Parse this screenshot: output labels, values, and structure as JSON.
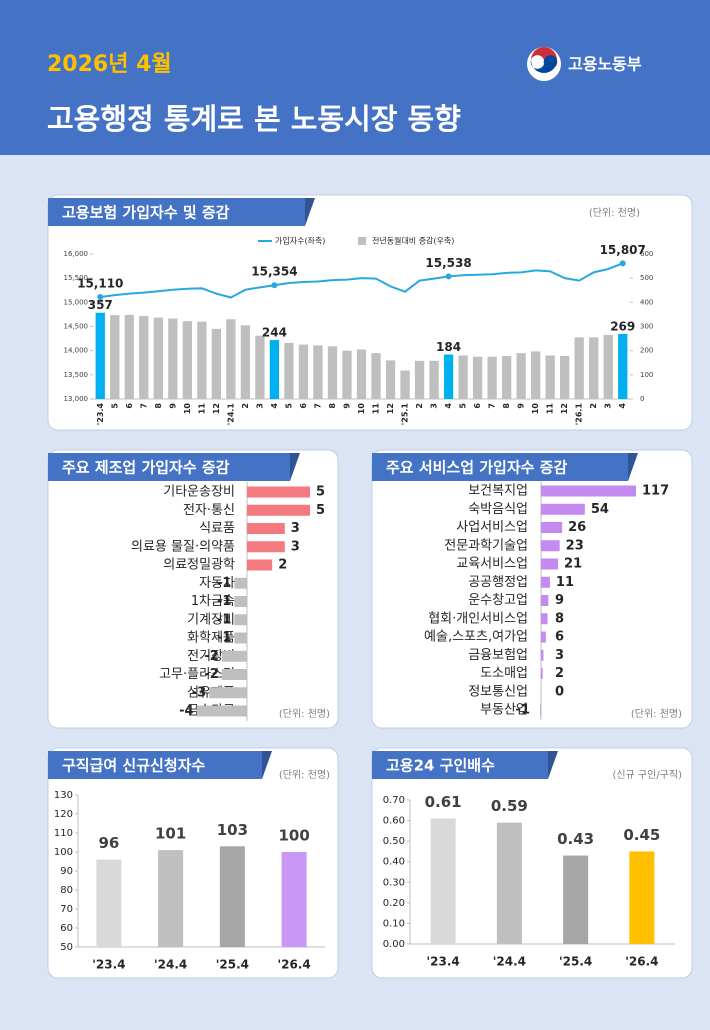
{
  "header": {
    "date": "2026년 4월",
    "title": "고용행정 통계로 본 노동시장 동향",
    "org": "고용노동부"
  },
  "chart_data": [
    {
      "type": "combo",
      "title": "고용보험 가입자수 및 증감",
      "note": "(단위: 천명)",
      "categories": [
        "'23.4",
        "5",
        "6",
        "7",
        "8",
        "9",
        "10",
        "11",
        "12",
        "'24.1",
        "2",
        "3",
        "4",
        "5",
        "6",
        "7",
        "8",
        "9",
        "10",
        "11",
        "12",
        "'25.1",
        "2",
        "3",
        "4",
        "5",
        "6",
        "7",
        "8",
        "9",
        "10",
        "11",
        "12",
        "'26.1",
        "2",
        "3",
        "4"
      ],
      "series": [
        {
          "name": "가입자수(좌축)",
          "type": "line",
          "color": "#29a8e0",
          "values": [
            15110,
            15150,
            15180,
            15200,
            15230,
            15260,
            15280,
            15290,
            15180,
            15100,
            15260,
            15310,
            15354,
            15400,
            15420,
            15430,
            15460,
            15470,
            15500,
            15490,
            15330,
            15220,
            15450,
            15490,
            15538,
            15560,
            15570,
            15580,
            15610,
            15620,
            15660,
            15640,
            15500,
            15450,
            15620,
            15690,
            15807
          ],
          "value_labels": [
            "15,110",
            null,
            null,
            null,
            null,
            null,
            null,
            null,
            null,
            null,
            null,
            null,
            "15,354",
            null,
            null,
            null,
            null,
            null,
            null,
            null,
            null,
            null,
            null,
            null,
            "15,538",
            null,
            null,
            null,
            null,
            null,
            null,
            null,
            null,
            null,
            null,
            null,
            "15,807"
          ]
        },
        {
          "name": "전년동월대비 증감(우축)",
          "type": "bar",
          "axis": "y2",
          "color": "#bfbfbf",
          "highlight_color": "#00b0f0",
          "values": [
            357,
            347,
            348,
            343,
            337,
            333,
            322,
            320,
            290,
            330,
            305,
            262,
            244,
            232,
            225,
            222,
            218,
            200,
            205,
            190,
            160,
            118,
            158,
            158,
            184,
            180,
            175,
            175,
            178,
            190,
            197,
            180,
            178,
            255,
            255,
            265,
            269
          ],
          "value_labels": [
            "357",
            null,
            null,
            null,
            null,
            null,
            null,
            null,
            null,
            null,
            null,
            null,
            "244",
            null,
            null,
            null,
            null,
            null,
            null,
            null,
            null,
            null,
            null,
            null,
            "184",
            null,
            null,
            null,
            null,
            null,
            null,
            null,
            null,
            null,
            null,
            null,
            "269"
          ]
        }
      ],
      "ylim": [
        13000,
        16000
      ],
      "yticks": [
        {
          "value": 13000,
          "label": "13,000"
        },
        {
          "value": 13500,
          "label": "13,500"
        },
        {
          "value": 14000,
          "label": "14,000"
        },
        {
          "value": 14500,
          "label": "14,500"
        },
        {
          "value": 15000,
          "label": "15,000"
        },
        {
          "value": 15500,
          "label": "15,500"
        },
        {
          "value": 16000,
          "label": "16,000"
        }
      ],
      "y2lim": [
        0,
        600
      ],
      "y2ticks": [
        0,
        100,
        200,
        300,
        400,
        500,
        600
      ]
    },
    {
      "type": "hbar",
      "title": "주요 제조업 가입자수 증감",
      "note": "(단위: 천명)",
      "color": "#f47a7f",
      "negative_color": "#bfbfbf",
      "categories": [
        "기타운송장비",
        "전자·통신",
        "식료품",
        "의료용 물질·의약품",
        "의료정밀광학",
        "자동차",
        "1차금속",
        "기계장비",
        "화학제품",
        "전기장비",
        "고무·플라스틱",
        "섬유제품",
        "금속가공"
      ],
      "values": [
        5,
        5,
        3,
        3,
        2,
        -1,
        -1,
        -1,
        -1,
        -2,
        -2,
        -3,
        -4
      ]
    },
    {
      "type": "hbar",
      "title": "주요 서비스업 가입자수 증감",
      "note": "(단위: 천명)",
      "color": "#c58af0",
      "categories": [
        "보건복지업",
        "숙박음식업",
        "사업서비스업",
        "전문과학기술업",
        "교육서비스업",
        "공공행정업",
        "운수창고업",
        "협회·개인서비스업",
        "예술,스포츠,여가업",
        "금융보험업",
        "도소매업",
        "정보통신업",
        "부동산업"
      ],
      "values": [
        117,
        54,
        26,
        23,
        21,
        11,
        9,
        8,
        6,
        3,
        2,
        0,
        -1
      ]
    },
    {
      "type": "bar",
      "title": "구직급여 신규신청자수",
      "note": "(단위: 천명)",
      "categories": [
        "'23.4",
        "'24.4",
        "'25.4",
        "'26.4"
      ],
      "values": [
        96,
        101,
        103,
        100
      ],
      "colors": [
        "#d9d9d9",
        "#bfbfbf",
        "#a6a6a6",
        "#c997f5"
      ],
      "ylim": [
        50,
        130
      ],
      "yticks": [
        50,
        60,
        70,
        80,
        90,
        100,
        110,
        120,
        130
      ]
    },
    {
      "type": "bar",
      "title": "고용24 구인배수",
      "note": "(신규 구인/구직)",
      "categories": [
        "'23.4",
        "'24.4",
        "'25.4",
        "'26.4"
      ],
      "values": [
        0.61,
        0.59,
        0.43,
        0.45
      ],
      "colors": [
        "#d9d9d9",
        "#bfbfbf",
        "#a6a6a6",
        "#ffc000"
      ],
      "ylim": [
        0,
        0.7
      ],
      "yticks": [
        {
          "value": 0,
          "label": "0.00"
        },
        {
          "value": 0.1,
          "label": "0.10"
        },
        {
          "value": 0.2,
          "label": "0.20"
        },
        {
          "value": 0.3,
          "label": "0.30"
        },
        {
          "value": 0.4,
          "label": "0.40"
        },
        {
          "value": 0.5,
          "label": "0.50"
        },
        {
          "value": 0.6,
          "label": "0.60"
        },
        {
          "value": 0.7,
          "label": "0.70"
        }
      ]
    }
  ]
}
